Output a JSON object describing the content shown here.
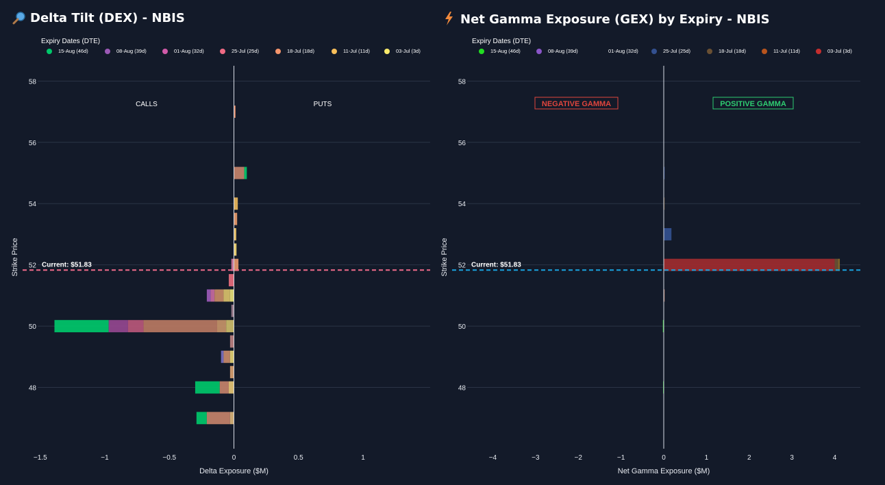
{
  "left": {
    "title": "Delta Tilt (DEX) - NBIS",
    "icon": "magnifier-icon",
    "legend_title": "Expiry Dates (DTE)",
    "legend": [
      {
        "label": "15-Aug (46d)",
        "color": "#00c76a"
      },
      {
        "label": "08-Aug (39d)",
        "color": "#9b59b6"
      },
      {
        "label": "01-Aug (32d)",
        "color": "#d05aa8"
      },
      {
        "label": "25-Jul (25d)",
        "color": "#ef6b85"
      },
      {
        "label": "18-Jul (18d)",
        "color": "#f5956c"
      },
      {
        "label": "11-Jul (11d)",
        "color": "#f8bf5a"
      },
      {
        "label": "03-Jul (3d)",
        "color": "#f9ea6b"
      }
    ],
    "annotations": {
      "calls": "CALLS",
      "puts": "PUTS"
    },
    "current_label": "Current: $51.83",
    "current_color": "#f06b8a"
  },
  "right": {
    "title": "Net Gamma Exposure (GEX) by Expiry - NBIS",
    "icon": "lightning-icon",
    "legend_title": "Expiry Dates (DTE)",
    "legend": [
      {
        "label": "15-Aug (46d)",
        "color": "#22dd22"
      },
      {
        "label": "08-Aug (39d)",
        "color": "#8a55c8"
      },
      {
        "label": "01-Aug (32d)",
        "color": "#131a29"
      },
      {
        "label": "25-Jul (25d)",
        "color": "#33508f"
      },
      {
        "label": "18-Jul (18d)",
        "color": "#6a5033"
      },
      {
        "label": "11-Jul (11d)",
        "color": "#b8541d"
      },
      {
        "label": "03-Jul (3d)",
        "color": "#c42e2e"
      }
    ],
    "annotations": {
      "negative": "NEGATIVE GAMMA",
      "positive": "POSITIVE GAMMA"
    },
    "current_label": "Current: $51.83",
    "current_color": "#1aa3e0"
  },
  "chart_data": [
    {
      "type": "bar",
      "orientation": "horizontal-stacked",
      "title": "Delta Tilt (DEX) - NBIS",
      "xlabel": "Delta Exposure ($M)",
      "ylabel": "Strike Price",
      "xlim": [
        -1.52,
        1.52
      ],
      "ylim": [
        46,
        58.5
      ],
      "xticks": [
        -1.5,
        -1,
        -0.5,
        0,
        0.5,
        1
      ],
      "xtick_labels": [
        "−1.5",
        "−1",
        "−0.5",
        "0",
        "0.5",
        "1"
      ],
      "yticks": [
        48,
        50,
        52,
        54,
        56,
        58
      ],
      "current_price": 51.83,
      "series_order": [
        "15-Aug (46d)",
        "08-Aug (39d)",
        "01-Aug (32d)",
        "25-Jul (25d)",
        "18-Jul (18d)",
        "11-Jul (11d)",
        "03-Jul (3d)"
      ],
      "segments": [
        {
          "strike": 57,
          "x0": 0,
          "x1": 0.012,
          "color": "#f5956c"
        },
        {
          "strike": 55,
          "x0": 0,
          "x1": 0.08,
          "color": "#c4826a"
        },
        {
          "strike": 55,
          "x0": 0.08,
          "x1": 0.1,
          "color": "#00c76a"
        },
        {
          "strike": 54,
          "x0": 0,
          "x1": 0.03,
          "color": "#e8b55a"
        },
        {
          "strike": 53.5,
          "x0": 0,
          "x1": 0.025,
          "color": "#e89a6a"
        },
        {
          "strike": 53,
          "x0": 0,
          "x1": 0.018,
          "color": "#f2c86a"
        },
        {
          "strike": 52.5,
          "x0": 0,
          "x1": 0.02,
          "color": "#f4d873"
        },
        {
          "strike": 52,
          "x0": 0,
          "x1": 0.035,
          "color": "#e6966a"
        },
        {
          "strike": 52,
          "x0": -0.02,
          "x1": 0,
          "color": "#d07aa0"
        },
        {
          "strike": 51.5,
          "x0": -0.04,
          "x1": 0,
          "color": "#e66b7c"
        },
        {
          "strike": 51,
          "x0": -0.21,
          "x1": -0.18,
          "color": "#9b59b6"
        },
        {
          "strike": 51,
          "x0": -0.18,
          "x1": -0.15,
          "color": "#c86aa0"
        },
        {
          "strike": 51,
          "x0": -0.15,
          "x1": -0.08,
          "color": "#c88a66"
        },
        {
          "strike": 51,
          "x0": -0.08,
          "x1": -0.03,
          "color": "#d9c06a"
        },
        {
          "strike": 51,
          "x0": -0.03,
          "x1": 0,
          "color": "#e7df7a"
        },
        {
          "strike": 50.5,
          "x0": -0.02,
          "x1": 0,
          "color": "#a08090"
        },
        {
          "strike": 50,
          "x0": -1.39,
          "x1": -0.97,
          "color": "#00c76a"
        },
        {
          "strike": 50,
          "x0": -0.97,
          "x1": -0.82,
          "color": "#94468f"
        },
        {
          "strike": 50,
          "x0": -0.82,
          "x1": -0.7,
          "color": "#b95779"
        },
        {
          "strike": 50,
          "x0": -0.7,
          "x1": -0.13,
          "color": "#b97862"
        },
        {
          "strike": 50,
          "x0": -0.13,
          "x1": -0.06,
          "color": "#c69268"
        },
        {
          "strike": 50,
          "x0": -0.06,
          "x1": 0,
          "color": "#ccbc6a"
        },
        {
          "strike": 49.5,
          "x0": -0.03,
          "x1": 0,
          "color": "#bb8080"
        },
        {
          "strike": 49,
          "x0": -0.1,
          "x1": -0.08,
          "color": "#7a6fc0"
        },
        {
          "strike": 49,
          "x0": -0.08,
          "x1": -0.03,
          "color": "#c98a6a"
        },
        {
          "strike": 49,
          "x0": -0.03,
          "x1": 0,
          "color": "#e3cf74"
        },
        {
          "strike": 48.5,
          "x0": -0.03,
          "x1": 0,
          "color": "#d8a070"
        },
        {
          "strike": 48,
          "x0": -0.3,
          "x1": -0.11,
          "color": "#00c76a"
        },
        {
          "strike": 48,
          "x0": -0.11,
          "x1": -0.04,
          "color": "#c4826a"
        },
        {
          "strike": 48,
          "x0": -0.04,
          "x1": 0,
          "color": "#e6c675"
        },
        {
          "strike": 47,
          "x0": -0.29,
          "x1": -0.21,
          "color": "#00c76a"
        },
        {
          "strike": 47,
          "x0": -0.21,
          "x1": -0.03,
          "color": "#c4826a"
        },
        {
          "strike": 47,
          "x0": -0.03,
          "x1": 0,
          "color": "#d9b37a"
        }
      ]
    },
    {
      "type": "bar",
      "orientation": "horizontal-stacked",
      "title": "Net Gamma Exposure (GEX) by Expiry - NBIS",
      "xlabel": "Net Gamma Exposure ($M)",
      "ylabel": "Strike Price",
      "xlim": [
        -4.6,
        4.6
      ],
      "ylim": [
        46,
        58.5
      ],
      "xticks": [
        -4,
        -3,
        -2,
        -1,
        0,
        1,
        2,
        3,
        4
      ],
      "xtick_labels": [
        "−4",
        "−3",
        "−2",
        "−1",
        "0",
        "1",
        "2",
        "3",
        "4"
      ],
      "yticks": [
        48,
        50,
        52,
        54,
        56,
        58
      ],
      "current_price": 51.83,
      "segments": [
        {
          "strike": 55,
          "x0": 0,
          "x1": 0.02,
          "color": "#33508f"
        },
        {
          "strike": 54,
          "x0": 0,
          "x1": 0.015,
          "color": "#6a5033"
        },
        {
          "strike": 53,
          "x0": 0,
          "x1": 0.18,
          "color": "#33508f"
        },
        {
          "strike": 52,
          "x0": 0,
          "x1": 4.0,
          "color": "#9f2b2f"
        },
        {
          "strike": 52,
          "x0": 4.0,
          "x1": 4.08,
          "color": "#6a5033"
        },
        {
          "strike": 52,
          "x0": 4.08,
          "x1": 4.12,
          "color": "#8a6a2a"
        },
        {
          "strike": 51,
          "x0": 0,
          "x1": 0.012,
          "color": "#c4826a"
        },
        {
          "strike": 50,
          "x0": -0.02,
          "x1": 0,
          "color": "#22dd22"
        },
        {
          "strike": 48,
          "x0": -0.015,
          "x1": 0,
          "color": "#22dd22"
        }
      ]
    }
  ]
}
